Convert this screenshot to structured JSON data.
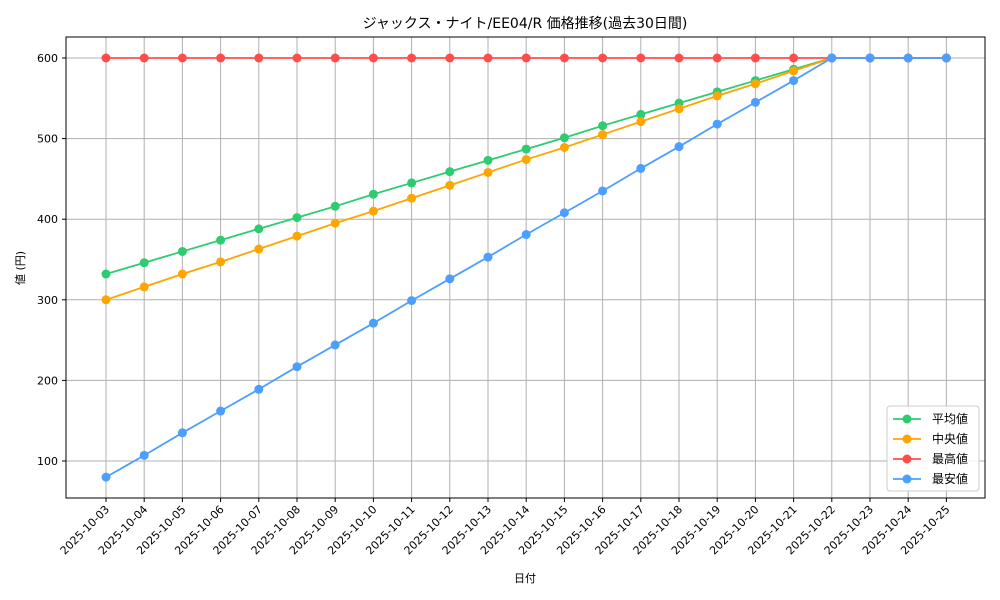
{
  "chart_data": {
    "type": "line",
    "title": "ジャックス・ナイト/EE04/R 価格推移(過去30日間)",
    "xlabel": "日付",
    "ylabel": "値 (円)",
    "ylim": [
      55,
      626
    ],
    "yticks": [
      100,
      200,
      300,
      400,
      500,
      600
    ],
    "grid": true,
    "legend_position": "lower right",
    "x": [
      "2025-10-03",
      "2025-10-04",
      "2025-10-05",
      "2025-10-06",
      "2025-10-07",
      "2025-10-08",
      "2025-10-09",
      "2025-10-10",
      "2025-10-11",
      "2025-10-12",
      "2025-10-13",
      "2025-10-14",
      "2025-10-15",
      "2025-10-16",
      "2025-10-17",
      "2025-10-18",
      "2025-10-19",
      "2025-10-20",
      "2025-10-21",
      "2025-10-22",
      "2025-10-23",
      "2025-10-24",
      "2025-10-25"
    ],
    "series": [
      {
        "name": "平均値",
        "color": "#2ecc71",
        "values": [
          332,
          346,
          360,
          374,
          388,
          402,
          416,
          431,
          445,
          459,
          473,
          487,
          501,
          516,
          530,
          544,
          558,
          572,
          586,
          600,
          600,
          600,
          600
        ]
      },
      {
        "name": "中央値",
        "color": "#ffa500",
        "values": [
          300,
          316,
          332,
          347,
          363,
          379,
          395,
          410,
          426,
          442,
          458,
          474,
          489,
          505,
          521,
          537,
          553,
          568,
          584,
          600,
          600,
          600,
          600
        ]
      },
      {
        "name": "最高値",
        "color": "#ff4d4d",
        "values": [
          600,
          600,
          600,
          600,
          600,
          600,
          600,
          600,
          600,
          600,
          600,
          600,
          600,
          600,
          600,
          600,
          600,
          600,
          600,
          600,
          600,
          600,
          600
        ]
      },
      {
        "name": "最安値",
        "color": "#4d9fff",
        "values": [
          80,
          107,
          135,
          162,
          189,
          217,
          244,
          271,
          299,
          326,
          353,
          381,
          408,
          435,
          463,
          490,
          518,
          545,
          572,
          600,
          600,
          600,
          600
        ]
      }
    ]
  }
}
